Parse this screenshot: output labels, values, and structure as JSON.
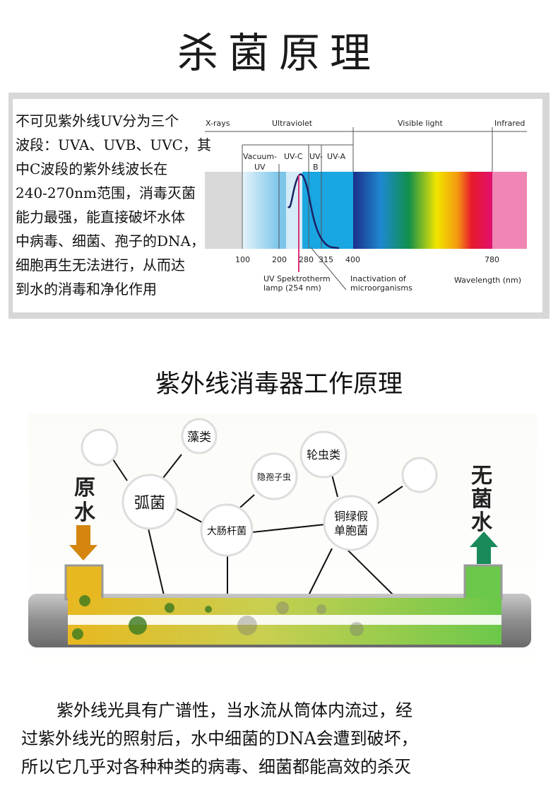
{
  "title": "杀菌原理",
  "intro_lines": [
    "不可见紫外线UV分为三个",
    "波段：UVA、UVB、UVC，其",
    "中C波段的紫外线波长在",
    "240-270nm范围，消毒灭菌",
    "能力最强，能直接破坏水体",
    "中病毒、细菌、孢子的DNA，",
    "细胞再生无法进行，从而达",
    "到水的消毒和净化作用"
  ],
  "spectrum": {
    "regions": [
      "X-rays",
      "Ultraviolet",
      "Visible light",
      "Infrared"
    ],
    "uv_bands": [
      "Vacuum-",
      "UV",
      "UV-C",
      "UV-",
      "B",
      "UV-A"
    ],
    "ticks": [
      "100",
      "200",
      "280",
      "315",
      "400",
      "780"
    ],
    "lamp_label": [
      "UV Spektrotherm",
      "lamp (254 nm)"
    ],
    "curve_label": [
      "Inactivation of",
      "microorganisms"
    ],
    "axis_label": "Wavelength (nm)"
  },
  "subtitle": "紫外线消毒器工作原理",
  "diagram": {
    "inlet_label": [
      "原",
      "水"
    ],
    "outlet_label": [
      "无",
      "菌",
      "水"
    ],
    "organisms": [
      "藻类",
      "弧菌",
      "隐孢子虫",
      "大肠杆菌",
      "轮虫类",
      "铜绿假",
      "单胞菌"
    ],
    "colors": {
      "inlet_arrow": "#d4860f",
      "outlet_arrow": "#1a8a5a",
      "pipe_raw": "#e8b820",
      "pipe_clean": "#6cc84a"
    }
  },
  "paragraph_lines": [
    "紫外线光具有广谱性，当水流从筒体内流过，经",
    "过紫外线光的照射后，水中细菌的DNA会遭到破坏，",
    "所以它几乎对各种种类的病毒、细菌都能高效的杀灭"
  ]
}
